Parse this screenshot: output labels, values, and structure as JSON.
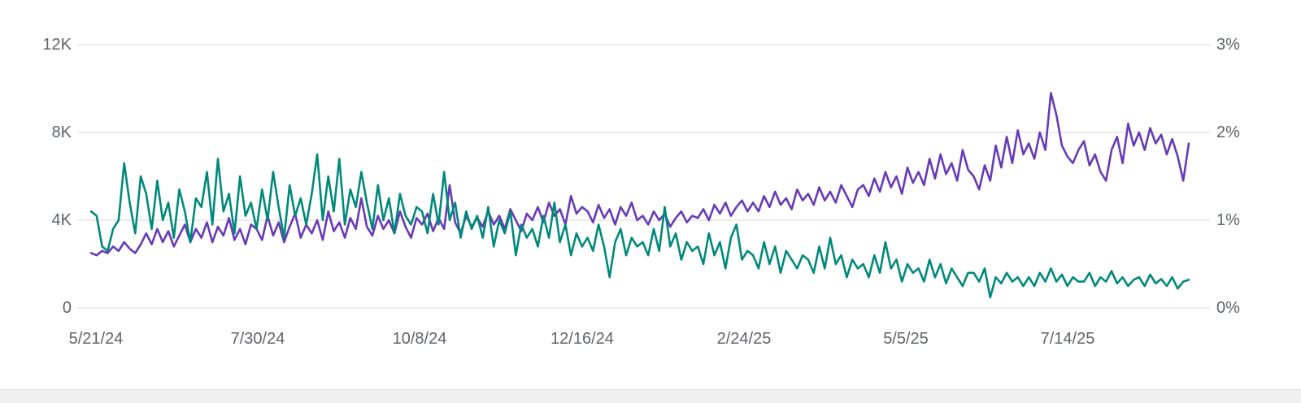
{
  "chart_data": {
    "type": "line",
    "title": "",
    "grid": "horizontal",
    "legend": "none",
    "x_tick_labels": [
      "5/21/24",
      "7/30/24",
      "10/8/24",
      "12/16/24",
      "2/24/25",
      "5/5/25",
      "7/14/25"
    ],
    "left_axis": {
      "ticks": [
        "12K",
        "8K",
        "4K",
        "0"
      ],
      "min": 0,
      "max": 12000,
      "unit": "count"
    },
    "right_axis": {
      "ticks": [
        "3%",
        "2%",
        "1%",
        "0%"
      ],
      "min": 0,
      "max": 3,
      "unit": "percent"
    },
    "series": [
      {
        "name": "purple-series",
        "color": "#673ab7",
        "axis": "left",
        "scale_max": 12,
        "unit": "K",
        "values": [
          2.5,
          2.4,
          2.6,
          2.5,
          2.8,
          2.6,
          3.0,
          2.7,
          2.5,
          2.9,
          3.4,
          2.9,
          3.6,
          3.0,
          3.5,
          2.8,
          3.3,
          3.8,
          3.0,
          3.6,
          3.2,
          3.9,
          3.0,
          3.7,
          3.3,
          4.1,
          3.1,
          3.6,
          2.9,
          3.8,
          3.6,
          3.1,
          4.2,
          3.3,
          3.9,
          3.0,
          3.7,
          4.3,
          3.2,
          3.8,
          3.4,
          4.0,
          3.1,
          4.4,
          3.5,
          3.9,
          3.2,
          4.1,
          3.6,
          5.0,
          3.7,
          3.3,
          4.2,
          3.6,
          4.0,
          3.4,
          4.4,
          3.7,
          3.2,
          4.1,
          3.8,
          4.3,
          3.5,
          4.1,
          3.6,
          5.6,
          3.9,
          3.4,
          4.2,
          3.7,
          4.1,
          3.7,
          4.4,
          3.8,
          4.2,
          3.6,
          4.5,
          4.0,
          3.5,
          4.3,
          4.0,
          4.6,
          3.9,
          4.8,
          4.2,
          4.5,
          3.8,
          5.1,
          4.3,
          4.6,
          4.4,
          3.9,
          4.7,
          4.1,
          4.5,
          3.8,
          4.6,
          4.2,
          4.8,
          4.0,
          4.2,
          3.8,
          4.4,
          4.0,
          4.3,
          3.7,
          4.1,
          4.4,
          3.9,
          4.2,
          4.1,
          4.5,
          4.0,
          4.7,
          4.3,
          4.8,
          4.2,
          4.6,
          4.9,
          4.4,
          4.8,
          4.4,
          5.1,
          4.6,
          5.3,
          4.7,
          5.0,
          4.5,
          5.4,
          4.9,
          5.2,
          4.7,
          5.5,
          4.9,
          5.3,
          4.8,
          5.6,
          5.1,
          4.6,
          5.4,
          5.6,
          5.1,
          5.9,
          5.3,
          6.2,
          5.5,
          6.0,
          5.2,
          6.4,
          5.7,
          6.2,
          5.6,
          6.8,
          5.9,
          7.0,
          6.1,
          6.6,
          5.8,
          7.2,
          6.3,
          6.0,
          5.4,
          6.5,
          5.8,
          7.4,
          6.4,
          7.8,
          6.6,
          8.1,
          7.0,
          7.5,
          6.8,
          8.0,
          7.2,
          9.8,
          8.8,
          7.4,
          6.9,
          6.6,
          7.2,
          7.6,
          6.5,
          7.0,
          6.2,
          5.8,
          7.2,
          7.8,
          6.6,
          8.4,
          7.4,
          8.0,
          7.2,
          8.2,
          7.5,
          7.9,
          7.0,
          7.7,
          6.9,
          5.8,
          7.5
        ]
      },
      {
        "name": "teal-series",
        "color": "#00897b",
        "axis": "right",
        "scale_max": 3,
        "unit": "%",
        "values": [
          1.1,
          1.05,
          0.7,
          0.65,
          0.9,
          1.0,
          1.65,
          1.2,
          0.85,
          1.5,
          1.3,
          0.9,
          1.45,
          1.0,
          1.2,
          0.8,
          1.35,
          1.1,
          0.75,
          1.25,
          1.15,
          1.55,
          0.95,
          1.7,
          1.1,
          1.3,
          0.85,
          1.5,
          1.05,
          1.2,
          0.9,
          1.35,
          1.0,
          1.55,
          1.15,
          0.8,
          1.4,
          1.05,
          1.25,
          0.95,
          1.3,
          1.75,
          1.0,
          1.5,
          1.1,
          1.7,
          0.95,
          1.35,
          1.15,
          1.55,
          1.2,
          0.9,
          1.4,
          1.0,
          1.25,
          0.85,
          1.3,
          1.05,
          0.95,
          1.15,
          1.1,
          0.85,
          1.3,
          0.95,
          1.55,
          1.0,
          1.2,
          0.8,
          1.1,
          0.9,
          1.05,
          0.8,
          1.15,
          0.7,
          1.0,
          0.85,
          1.1,
          0.6,
          0.95,
          0.8,
          0.9,
          0.7,
          1.05,
          0.8,
          1.2,
          0.75,
          0.95,
          0.6,
          0.85,
          0.7,
          0.8,
          0.65,
          0.95,
          0.7,
          0.35,
          0.75,
          0.9,
          0.6,
          0.8,
          0.7,
          0.75,
          0.6,
          0.9,
          0.65,
          1.15,
          0.7,
          0.85,
          0.55,
          0.75,
          0.65,
          0.7,
          0.5,
          0.85,
          0.6,
          0.75,
          0.45,
          0.8,
          0.95,
          0.55,
          0.65,
          0.6,
          0.45,
          0.75,
          0.5,
          0.7,
          0.4,
          0.65,
          0.55,
          0.45,
          0.6,
          0.55,
          0.4,
          0.7,
          0.45,
          0.8,
          0.5,
          0.6,
          0.35,
          0.55,
          0.45,
          0.5,
          0.35,
          0.6,
          0.4,
          0.75,
          0.45,
          0.55,
          0.3,
          0.5,
          0.4,
          0.45,
          0.3,
          0.55,
          0.35,
          0.5,
          0.28,
          0.45,
          0.35,
          0.25,
          0.4,
          0.4,
          0.3,
          0.45,
          0.12,
          0.35,
          0.28,
          0.4,
          0.3,
          0.35,
          0.25,
          0.35,
          0.25,
          0.4,
          0.3,
          0.45,
          0.3,
          0.38,
          0.25,
          0.35,
          0.3,
          0.3,
          0.4,
          0.25,
          0.35,
          0.3,
          0.42,
          0.28,
          0.35,
          0.25,
          0.32,
          0.35,
          0.25,
          0.38,
          0.28,
          0.33,
          0.25,
          0.35,
          0.22,
          0.3,
          0.32
        ]
      }
    ],
    "colors": {
      "grid": "#e6e6e6",
      "axis_text": "#5f6368",
      "background": "#ffffff"
    }
  }
}
